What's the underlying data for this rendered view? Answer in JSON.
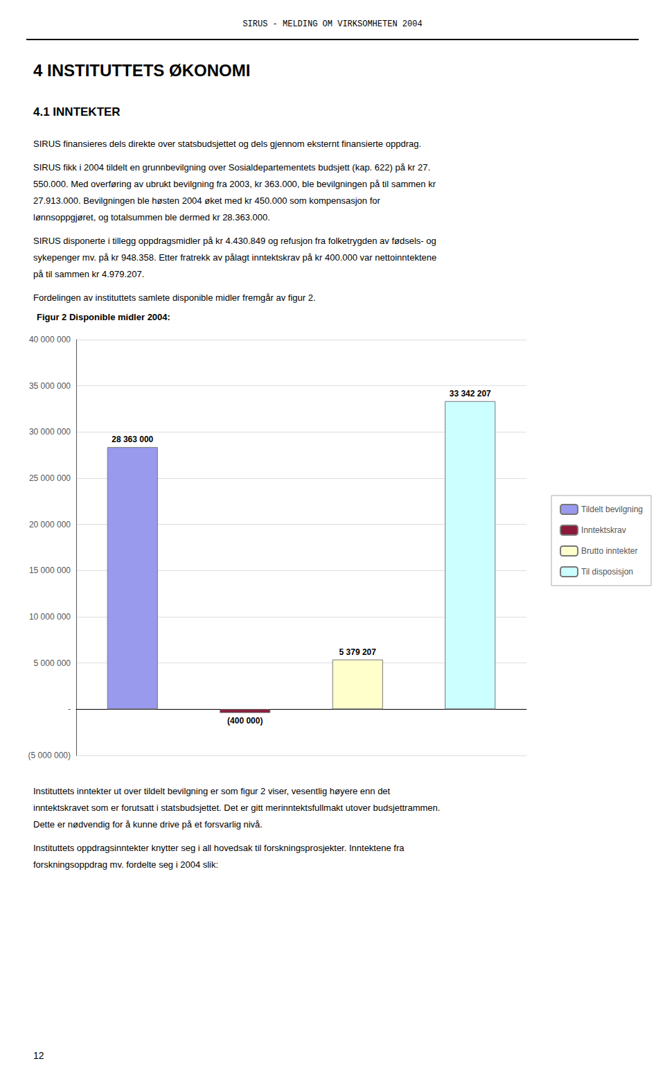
{
  "page_texts": {
    "header": "SIRUS - MELDING OM VIRKSOMHETEN 2004",
    "section": "4   INSTITUTTETS ØKONOMI",
    "subsection": "4.1   INNTEKTER",
    "body": [
      [
        "SIRUS finansieres dels direkte over statsbudsjettet og dels gjennom eksternt finansierte oppdrag."
      ],
      [
        "SIRUS fikk i 2004 tildelt en grunnbevilgning over Sosialdepartementets budsjett (kap. 622) på kr 27.",
        "550.000.  Med overføring av ubrukt bevilgning fra 2003, kr  363.000, ble bevilgningen på til sammen kr",
        "27.913.000.  Bevilgningen ble høsten 2004 øket med kr 450.000 som kompensasjon for",
        "lønnsoppgjøret, og totalsummen ble dermed kr 28.363.000."
      ],
      [
        "SIRUS disponerte i tillegg oppdragsmidler på kr 4.430.849 og refusjon fra folketrygden av fødsels- og",
        "sykepenger mv. på kr 948.358.  Etter fratrekk av pålagt inntektskrav på kr 400.000 var nettoinntektene",
        "på til sammen kr 4.979.207."
      ],
      [
        "Fordelingen av instituttets samlete disponible midler fremgår av figur 2."
      ]
    ],
    "footer": [
      [
        "Instituttets inntekter ut over tildelt bevilgning er som figur 2 viser, vesentlig høyere enn det",
        "inntektskravet som er forutsatt i statsbudsjettet. Det er gitt merinntektsfullmakt utover budsjettrammen.",
        "Dette er nødvendig for å kunne drive på et forsvarlig nivå."
      ],
      [
        "Instituttets oppdragsinntekter knytter seg i all hovedsak til forskningsprosjekter.  Inntektene fra",
        "forskningsoppdrag mv. fordelte seg i 2004 slik:"
      ]
    ],
    "page_number": "12"
  },
  "chart_data": {
    "type": "bar",
    "title": "Figur 2 Disponible midler 2004:",
    "categories": [
      "Tildelt bevilgning",
      "Inntektskrav",
      "Brutto inntekter",
      "Til disposisjon"
    ],
    "values": [
      28363000,
      -400000,
      5379207,
      33342207
    ],
    "value_labels": [
      "28 363 000",
      "(400 000)",
      "5 379 207",
      "33 342 207"
    ],
    "colors": [
      "#9999ee",
      "#8b1a3a",
      "#ffffcc",
      "#ccffff"
    ],
    "data_labels": true,
    "ylim": [
      -5000000,
      40000000
    ],
    "yticks": [
      {
        "value": -5000000,
        "label": "(5 000 000)"
      },
      {
        "value": 0,
        "label": "-"
      },
      {
        "value": 5000000,
        "label": "5 000 000"
      },
      {
        "value": 10000000,
        "label": "10 000 000"
      },
      {
        "value": 15000000,
        "label": "15 000 000"
      },
      {
        "value": 20000000,
        "label": "20 000 000"
      },
      {
        "value": 25000000,
        "label": "25 000 000"
      },
      {
        "value": 30000000,
        "label": "30 000 000"
      },
      {
        "value": 35000000,
        "label": "35 000 000"
      },
      {
        "value": 40000000,
        "label": "40 000 000"
      }
    ],
    "grid": true,
    "legend": "right",
    "tick_labels": "y"
  }
}
